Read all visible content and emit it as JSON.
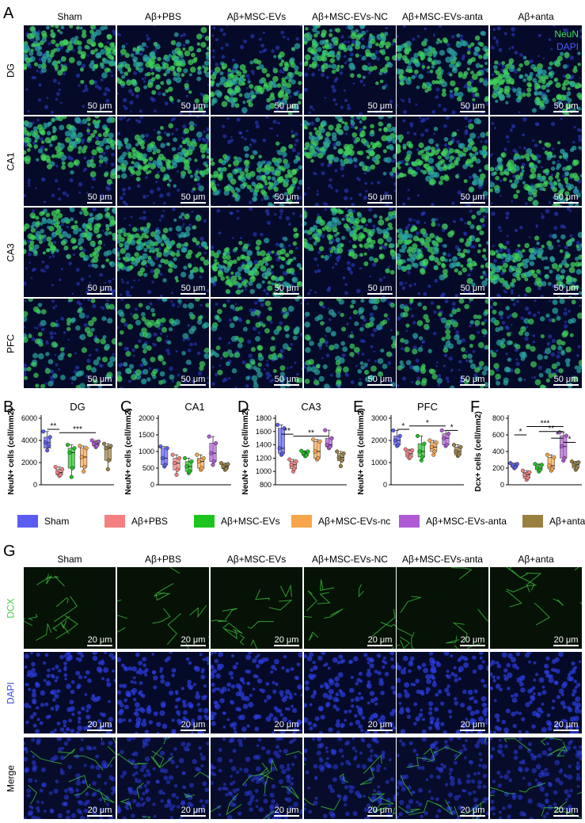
{
  "panelA": {
    "label": "A",
    "columns": [
      "Sham",
      "Aβ+PBS",
      "Aβ+MSC-EVs",
      "Aβ+MSC-EVs-NC",
      "Aβ+MSC-EVs-anta",
      "Aβ+anta"
    ],
    "rows": [
      "DG",
      "CA1",
      "CA3",
      "PFC"
    ],
    "channel_labels": [
      "NeuN",
      "DAPI"
    ],
    "scale_text": "50 μm"
  },
  "legend": {
    "items": [
      {
        "label": "Sham",
        "color": "#5b5cf2"
      },
      {
        "label": "Aβ+PBS",
        "color": "#f58080"
      },
      {
        "label": "Aβ+MSC-EVs",
        "color": "#1ec41e"
      },
      {
        "label": "Aβ+MSC-EVs-nc",
        "color": "#f7a54a"
      },
      {
        "label": "Aβ+MSC-EVs-anta",
        "color": "#b05ad6"
      },
      {
        "label": "Aβ+anta",
        "color": "#9a8040"
      }
    ]
  },
  "panelG": {
    "label": "G",
    "columns": [
      "Sham",
      "Aβ+PBS",
      "Aβ+MSC-EVs",
      "Aβ+MSC-EVs-NC",
      "Aβ+MSC-EVs-anta",
      "Aβ+anta"
    ],
    "rows": [
      "DCX",
      "DAPI",
      "Merge"
    ],
    "scale_text": "20 μm"
  },
  "chart_data": [
    {
      "panel": "B",
      "type": "box",
      "title": "DG",
      "ylabel": "NeuN+ cells (cell/mm2)",
      "ylim": [
        0,
        6000
      ],
      "yticks": [
        0,
        2000,
        4000,
        6000
      ],
      "boxes": [
        {
          "min": 3100,
          "q1": 3300,
          "med": 3800,
          "q3": 4300,
          "max": 4800
        },
        {
          "min": 800,
          "q1": 900,
          "med": 1100,
          "q3": 1400,
          "max": 1600
        },
        {
          "min": 700,
          "q1": 1500,
          "med": 2900,
          "q3": 3300,
          "max": 3600
        },
        {
          "min": 1200,
          "q1": 1600,
          "med": 2500,
          "q3": 3300,
          "max": 3500
        },
        {
          "min": 3400,
          "q1": 3500,
          "med": 3700,
          "q3": 3900,
          "max": 4000
        },
        {
          "min": 1400,
          "q1": 2200,
          "med": 3300,
          "q3": 3500,
          "max": 3700
        }
      ],
      "points": [
        [
          3100,
          3500,
          3800,
          4300,
          4800
        ],
        [
          800,
          900,
          1100,
          1400,
          1600
        ],
        [
          700,
          1500,
          2900,
          3300,
          3600
        ],
        [
          1200,
          1600,
          2500,
          3300,
          3500
        ],
        [
          3400,
          3500,
          3700,
          3900,
          4000
        ],
        [
          1400,
          2200,
          3300,
          3500,
          3700
        ]
      ],
      "sig": [
        {
          "from": 0,
          "to": 1,
          "text": "**",
          "y": 5000
        },
        {
          "from": 1,
          "to": 4,
          "text": "***",
          "y": 4700
        }
      ]
    },
    {
      "panel": "C",
      "type": "box",
      "title": "CA1",
      "ylabel": "NeuN+ cells (cell/mm2)",
      "ylim": [
        0,
        2000
      ],
      "yticks": [
        0,
        500,
        1000,
        1500,
        2000
      ],
      "boxes": [
        {
          "min": 550,
          "q1": 600,
          "med": 800,
          "q3": 1100,
          "max": 1150
        },
        {
          "min": 300,
          "q1": 450,
          "med": 650,
          "q3": 800,
          "max": 900
        },
        {
          "min": 350,
          "q1": 400,
          "med": 550,
          "q3": 700,
          "max": 800
        },
        {
          "min": 450,
          "q1": 500,
          "med": 700,
          "q3": 800,
          "max": 900
        },
        {
          "min": 600,
          "q1": 700,
          "med": 950,
          "q3": 1250,
          "max": 1450
        },
        {
          "min": 450,
          "q1": 480,
          "med": 550,
          "q3": 620,
          "max": 650
        }
      ],
      "points": [
        [
          550,
          600,
          800,
          1100,
          1150
        ],
        [
          300,
          450,
          650,
          800,
          900
        ],
        [
          350,
          400,
          550,
          700,
          800
        ],
        [
          450,
          500,
          700,
          800,
          900
        ],
        [
          600,
          700,
          950,
          1250,
          1450
        ],
        [
          450,
          480,
          550,
          620,
          650
        ]
      ],
      "sig": []
    },
    {
      "panel": "D",
      "type": "box",
      "title": "CA3",
      "ylabel": "NeuN+ cells (cell/mm2)",
      "ylim": [
        800,
        1800
      ],
      "yticks": [
        800,
        1000,
        1200,
        1400,
        1600,
        1800
      ],
      "boxes": [
        {
          "min": 1250,
          "q1": 1270,
          "med": 1350,
          "q3": 1650,
          "max": 1700
        },
        {
          "min": 1000,
          "q1": 1040,
          "med": 1100,
          "q3": 1150,
          "max": 1180
        },
        {
          "min": 1230,
          "q1": 1240,
          "med": 1280,
          "q3": 1300,
          "max": 1310
        },
        {
          "min": 1180,
          "q1": 1200,
          "med": 1300,
          "q3": 1450,
          "max": 1480
        },
        {
          "min": 1350,
          "q1": 1370,
          "med": 1400,
          "q3": 1500,
          "max": 1620
        },
        {
          "min": 1080,
          "q1": 1160,
          "med": 1210,
          "q3": 1270,
          "max": 1300
        }
      ],
      "points": [
        [
          1250,
          1270,
          1350,
          1650,
          1700
        ],
        [
          1000,
          1040,
          1100,
          1150,
          1180
        ],
        [
          1230,
          1240,
          1280,
          1300,
          1310
        ],
        [
          1180,
          1200,
          1300,
          1450,
          1480
        ],
        [
          1350,
          1370,
          1400,
          1500,
          1620
        ],
        [
          1080,
          1160,
          1210,
          1270,
          1300
        ]
      ],
      "sig": [
        {
          "from": 0,
          "to": 1,
          "text": "**",
          "y": 1560
        },
        {
          "from": 1,
          "to": 4,
          "text": "**",
          "y": 1530
        }
      ]
    },
    {
      "panel": "E",
      "type": "box",
      "title": "PFC",
      "ylabel": "NeuN+ cells (cell/mm2)",
      "ylim": [
        0,
        3000
      ],
      "yticks": [
        0,
        1000,
        2000,
        3000
      ],
      "boxes": [
        {
          "min": 1750,
          "q1": 1800,
          "med": 2000,
          "q3": 2200,
          "max": 2450
        },
        {
          "min": 1200,
          "q1": 1250,
          "med": 1400,
          "q3": 1550,
          "max": 1600
        },
        {
          "min": 1100,
          "q1": 1250,
          "med": 1500,
          "q3": 1850,
          "max": 2200
        },
        {
          "min": 1350,
          "q1": 1500,
          "med": 1700,
          "q3": 1900,
          "max": 2000
        },
        {
          "min": 1750,
          "q1": 1800,
          "med": 2100,
          "q3": 2300,
          "max": 2450
        },
        {
          "min": 1300,
          "q1": 1350,
          "med": 1500,
          "q3": 1700,
          "max": 1800
        }
      ],
      "points": [
        [
          1750,
          1800,
          2000,
          2200,
          2450
        ],
        [
          1200,
          1250,
          1400,
          1550,
          1600
        ],
        [
          1100,
          1250,
          1500,
          1850,
          2200
        ],
        [
          1350,
          1500,
          1700,
          1900,
          2000
        ],
        [
          1750,
          1800,
          2100,
          2300,
          2450
        ],
        [
          1300,
          1350,
          1500,
          1700,
          1800
        ]
      ],
      "sig": [
        {
          "from": 0,
          "to": 1,
          "text": "*",
          "y": 2500
        },
        {
          "from": 1,
          "to": 4,
          "text": "*",
          "y": 2650
        },
        {
          "from": 4,
          "to": 5,
          "text": "*",
          "y": 2450
        }
      ]
    },
    {
      "panel": "F",
      "type": "box",
      "title": "",
      "ylabel": "Dcx+ cells (cell/mm2)",
      "ylim": [
        0,
        800
      ],
      "yticks": [
        0,
        200,
        400,
        600,
        800
      ],
      "boxes": [
        {
          "min": 200,
          "q1": 210,
          "med": 230,
          "q3": 250,
          "max": 260
        },
        {
          "min": 60,
          "q1": 80,
          "med": 120,
          "q3": 150,
          "max": 170
        },
        {
          "min": 160,
          "q1": 180,
          "med": 200,
          "q3": 240,
          "max": 250
        },
        {
          "min": 170,
          "q1": 190,
          "med": 230,
          "q3": 330,
          "max": 360
        },
        {
          "min": 290,
          "q1": 320,
          "med": 460,
          "q3": 590,
          "max": 630
        },
        {
          "min": 180,
          "q1": 200,
          "med": 240,
          "q3": 270,
          "max": 280
        }
      ],
      "points": [
        [
          200,
          210,
          230,
          250,
          260
        ],
        [
          60,
          80,
          120,
          150,
          170
        ],
        [
          160,
          180,
          200,
          240,
          250
        ],
        [
          170,
          190,
          230,
          330,
          360
        ],
        [
          290,
          320,
          460,
          590,
          630
        ],
        [
          180,
          200,
          240,
          270,
          280
        ]
      ],
      "sig": [
        {
          "from": 0,
          "to": 1,
          "text": "*",
          "y": 600
        },
        {
          "from": 1,
          "to": 4,
          "text": "***",
          "y": 700
        },
        {
          "from": 2,
          "to": 4,
          "text": "**",
          "y": 640
        },
        {
          "from": 3,
          "to": 4,
          "text": "*",
          "y": 560
        },
        {
          "from": 4,
          "to": 5,
          "text": "*",
          "y": 510
        }
      ]
    }
  ]
}
